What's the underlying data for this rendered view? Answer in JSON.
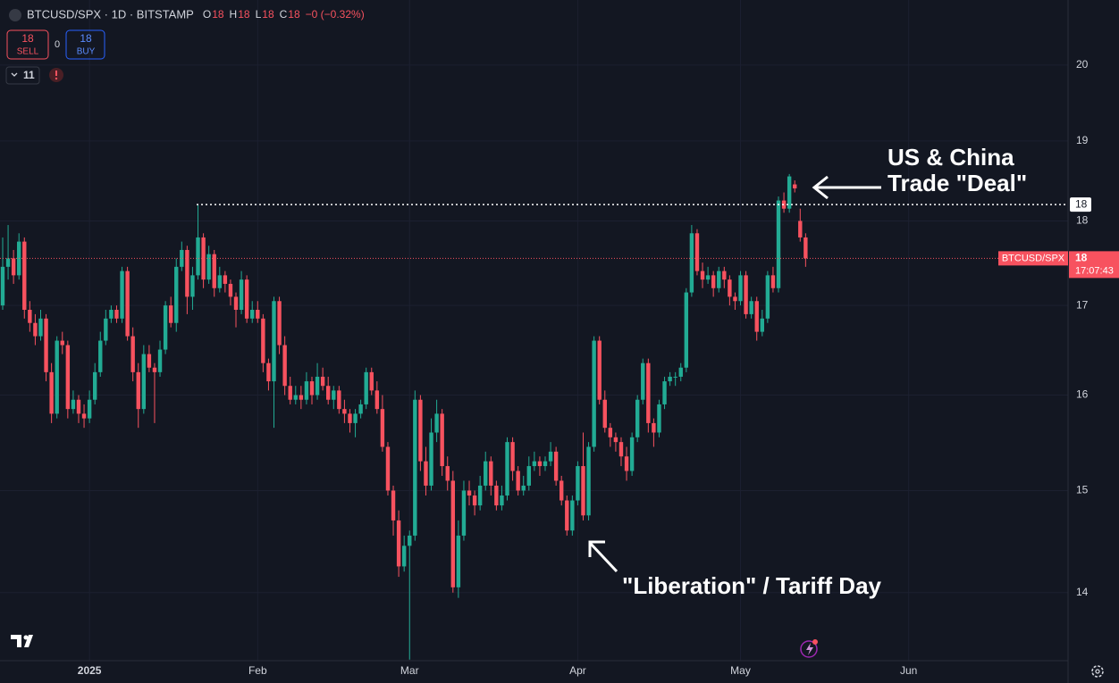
{
  "header": {
    "symbol": "BTCUSD/SPX · 1D · BITSTAMP",
    "ohlc": [
      [
        "O",
        "18"
      ],
      [
        "H",
        "18"
      ],
      [
        "L",
        "18"
      ],
      [
        "C",
        "18"
      ]
    ],
    "change": "−0 (−0.32%)",
    "sell_price": "18",
    "sell": "SELL",
    "spread": "0",
    "buy_price": "18",
    "buy": "BUY",
    "indicators": "11"
  },
  "chart_data": {
    "type": "candlestick",
    "annotations": [
      "US & China",
      "Trade \"Deal\"",
      "\"Liberation\" / Tariff Day"
    ],
    "up_color": "#22ab94",
    "down_color": "#f7525f",
    "log_scale": true,
    "ylim": [
      13.37,
      20.9
    ],
    "yticks": [
      14,
      15,
      16,
      17,
      18,
      19,
      20
    ],
    "high_line": {
      "value": 18.2,
      "label": "18"
    },
    "last_price_label": "18",
    "symbol_tag": "BTCUSD/SPX",
    "countdown": "17:07:43",
    "categories": [
      null,
      null,
      null,
      null,
      null,
      null,
      null,
      null,
      null,
      null,
      null,
      null,
      null,
      null,
      null,
      null,
      "2025",
      null,
      null,
      null,
      null,
      null,
      null,
      null,
      null,
      null,
      null,
      null,
      null,
      null,
      null,
      null,
      null,
      null,
      null,
      null,
      null,
      null,
      null,
      null,
      null,
      null,
      null,
      null,
      null,
      null,
      null,
      "Feb",
      null,
      null,
      null,
      null,
      null,
      null,
      null,
      null,
      null,
      null,
      null,
      null,
      null,
      null,
      null,
      null,
      null,
      null,
      null,
      null,
      null,
      null,
      null,
      null,
      null,
      null,
      null,
      "Mar",
      null,
      null,
      null,
      null,
      null,
      null,
      null,
      null,
      null,
      null,
      null,
      null,
      null,
      null,
      null,
      null,
      null,
      null,
      null,
      null,
      null,
      null,
      null,
      null,
      null,
      null,
      null,
      null,
      null,
      null,
      "Apr",
      null,
      null,
      null,
      null,
      null,
      null,
      null,
      null,
      null,
      null,
      null,
      null,
      null,
      null,
      null,
      null,
      null,
      null,
      null,
      null,
      null,
      null,
      null,
      null,
      null,
      null,
      null,
      null,
      null,
      "May",
      null,
      null,
      null,
      null,
      null,
      null,
      null,
      null,
      null,
      null,
      null,
      null,
      null,
      null,
      null,
      null,
      null,
      null,
      null,
      null,
      null,
      null,
      null,
      null,
      null,
      null,
      null,
      null,
      null,
      null,
      "Jun"
    ],
    "open": [
      17.0,
      17.45,
      17.55,
      17.35,
      17.75,
      16.95,
      16.8,
      16.65,
      16.85,
      16.25,
      15.8,
      16.6,
      16.55,
      15.85,
      15.95,
      15.8,
      15.75,
      15.95,
      16.25,
      16.6,
      16.85,
      16.95,
      16.85,
      17.4,
      16.65,
      16.25,
      15.85,
      16.45,
      16.3,
      16.25,
      16.5,
      17.0,
      16.8,
      17.45,
      17.65,
      17.1,
      17.35,
      17.8,
      17.3,
      17.6,
      17.2,
      17.35,
      17.25,
      17.1,
      16.95,
      17.3,
      16.85,
      16.95,
      16.85,
      16.35,
      16.15,
      17.05,
      16.55,
      16.1,
      15.95,
      16.0,
      15.95,
      16.15,
      16.0,
      16.2,
      16.1,
      15.95,
      16.05,
      15.85,
      15.8,
      15.7,
      15.8,
      15.9,
      16.25,
      16.05,
      15.85,
      15.45,
      15.0,
      14.7,
      14.25,
      14.45,
      14.55,
      15.95,
      15.3,
      15.05,
      15.6,
      15.8,
      15.25,
      15.1,
      14.05,
      14.55,
      15.0,
      14.95,
      14.85,
      15.05,
      15.3,
      15.05,
      14.85,
      14.95,
      15.5,
      15.2,
      15.0,
      15.05,
      15.25,
      15.3,
      15.25,
      15.3,
      15.4,
      15.1,
      14.9,
      14.6,
      14.9,
      15.25,
      14.75,
      15.45,
      16.6,
      15.95,
      15.65,
      15.55,
      15.5,
      15.35,
      15.2,
      15.55,
      15.95,
      16.35,
      15.7,
      15.6,
      15.9,
      16.15,
      16.2,
      16.2,
      16.3,
      17.15,
      17.85,
      17.4,
      17.3,
      17.35,
      17.2,
      17.4,
      17.3,
      17.1,
      17.05,
      17.35,
      16.9,
      17.05,
      16.7,
      16.85,
      17.35,
      17.2,
      18.25,
      18.15,
      18.45,
      18.0,
      17.8,
      null,
      null,
      null,
      null,
      null,
      null,
      null,
      null,
      null,
      null,
      null,
      null,
      null,
      null,
      null,
      null,
      null,
      null,
      null
    ],
    "high": [
      17.8,
      17.95,
      17.65,
      17.85,
      17.8,
      17.05,
      16.9,
      16.95,
      16.9,
      16.35,
      16.65,
      16.7,
      16.6,
      16.05,
      16.0,
      15.9,
      16.05,
      16.35,
      16.7,
      16.95,
      17.0,
      17.0,
      17.45,
      17.45,
      16.75,
      16.35,
      16.55,
      16.55,
      16.35,
      16.6,
      17.05,
      17.1,
      17.55,
      17.75,
      17.7,
      17.45,
      18.2,
      17.85,
      17.7,
      17.65,
      17.45,
      17.4,
      17.3,
      17.15,
      17.4,
      17.35,
      17.05,
      17.05,
      16.9,
      16.4,
      17.1,
      17.1,
      16.65,
      16.2,
      16.1,
      16.1,
      16.25,
      16.2,
      16.35,
      16.3,
      16.2,
      16.1,
      16.1,
      15.95,
      15.85,
      15.85,
      15.95,
      16.3,
      16.3,
      16.15,
      16.0,
      15.5,
      15.05,
      14.8,
      14.55,
      14.6,
      16.05,
      16.0,
      15.45,
      15.75,
      15.95,
      15.85,
      15.35,
      15.2,
      14.7,
      15.1,
      15.1,
      15.0,
      15.15,
      15.4,
      15.35,
      15.1,
      15.05,
      15.55,
      15.55,
      15.25,
      15.15,
      15.35,
      15.4,
      15.35,
      15.35,
      15.5,
      15.45,
      15.15,
      14.95,
      14.95,
      15.3,
      15.6,
      15.5,
      16.65,
      16.65,
      16.05,
      15.7,
      15.6,
      15.55,
      15.45,
      15.6,
      16.0,
      16.4,
      16.4,
      15.75,
      15.95,
      16.2,
      16.25,
      16.25,
      16.35,
      17.2,
      17.95,
      17.9,
      17.5,
      17.45,
      17.4,
      17.45,
      17.45,
      17.35,
      17.15,
      17.4,
      17.4,
      17.1,
      17.1,
      16.95,
      17.4,
      17.45,
      18.3,
      18.35,
      18.58,
      18.5,
      18.15,
      17.85,
      null,
      null,
      null,
      null,
      null,
      null,
      null,
      null,
      null,
      null,
      null,
      null,
      null,
      null,
      null,
      null,
      null,
      null,
      null
    ],
    "low": [
      16.95,
      17.3,
      17.25,
      17.3,
      16.85,
      16.7,
      16.55,
      16.6,
      16.15,
      15.7,
      15.75,
      16.45,
      15.75,
      15.8,
      15.7,
      15.65,
      15.7,
      15.9,
      16.2,
      16.55,
      16.8,
      16.8,
      16.8,
      16.6,
      16.15,
      15.65,
      15.8,
      16.25,
      15.7,
      16.2,
      16.45,
      16.75,
      16.7,
      17.4,
      16.9,
      16.95,
      17.3,
      17.2,
      17.25,
      17.1,
      17.15,
      17.15,
      17.0,
      16.75,
      16.9,
      16.8,
      16.8,
      16.8,
      16.25,
      16.05,
      15.65,
      16.45,
      16.0,
      15.9,
      15.9,
      15.85,
      15.9,
      15.9,
      15.95,
      16.05,
      15.9,
      15.85,
      15.8,
      15.7,
      15.6,
      15.55,
      15.75,
      15.85,
      16.0,
      15.8,
      15.4,
      14.95,
      14.55,
      14.15,
      14.2,
      13.38,
      14.5,
      15.2,
      14.95,
      15.0,
      15.5,
      15.15,
      15.0,
      14.0,
      13.95,
      14.5,
      14.85,
      14.75,
      14.8,
      15.0,
      14.95,
      14.8,
      14.8,
      14.9,
      15.1,
      14.95,
      14.95,
      15.0,
      15.2,
      15.15,
      15.2,
      15.25,
      15.05,
      14.85,
      14.55,
      14.55,
      14.85,
      14.7,
      14.7,
      15.4,
      15.9,
      15.6,
      15.45,
      15.4,
      15.25,
      15.1,
      15.15,
      15.5,
      15.9,
      15.6,
      15.45,
      15.55,
      15.85,
      16.1,
      16.1,
      16.15,
      16.25,
      17.1,
      17.35,
      17.2,
      17.25,
      17.1,
      17.15,
      17.2,
      17.0,
      16.95,
      17.0,
      16.85,
      16.85,
      16.6,
      16.65,
      16.8,
      17.15,
      17.15,
      18.1,
      18.1,
      18.35,
      17.75,
      17.45,
      null,
      null,
      null,
      null,
      null,
      null,
      null,
      null,
      null,
      null,
      null,
      null,
      null,
      null,
      null,
      null,
      null,
      null,
      null
    ],
    "close": [
      17.45,
      17.55,
      17.35,
      17.75,
      16.95,
      16.8,
      16.65,
      16.85,
      16.25,
      15.8,
      16.6,
      16.55,
      15.85,
      15.95,
      15.8,
      15.75,
      15.95,
      16.25,
      16.6,
      16.85,
      16.95,
      16.85,
      17.4,
      16.65,
      16.25,
      15.85,
      16.45,
      16.3,
      16.25,
      16.5,
      17.0,
      16.8,
      17.45,
      17.65,
      17.1,
      17.35,
      17.8,
      17.3,
      17.6,
      17.2,
      17.35,
      17.25,
      17.1,
      16.95,
      17.3,
      16.85,
      16.95,
      16.85,
      16.35,
      16.15,
      17.05,
      16.55,
      16.1,
      15.95,
      16.0,
      15.95,
      16.15,
      16.0,
      16.2,
      16.1,
      15.95,
      16.05,
      15.85,
      15.8,
      15.7,
      15.8,
      15.9,
      16.25,
      16.05,
      15.85,
      15.45,
      15.0,
      14.7,
      14.25,
      14.45,
      14.55,
      15.95,
      15.3,
      15.05,
      15.6,
      15.8,
      15.25,
      15.1,
      14.05,
      14.55,
      15.0,
      14.95,
      14.85,
      15.05,
      15.3,
      15.05,
      14.85,
      14.95,
      15.5,
      15.2,
      15.0,
      15.05,
      15.25,
      15.3,
      15.25,
      15.3,
      15.4,
      15.1,
      14.9,
      14.6,
      14.9,
      15.25,
      14.75,
      15.45,
      16.6,
      15.95,
      15.65,
      15.55,
      15.5,
      15.35,
      15.2,
      15.55,
      15.95,
      16.35,
      15.7,
      15.6,
      15.9,
      16.15,
      16.2,
      16.2,
      16.3,
      17.15,
      17.85,
      17.4,
      17.3,
      17.35,
      17.2,
      17.4,
      17.3,
      17.1,
      17.05,
      17.35,
      16.9,
      17.05,
      16.7,
      16.85,
      17.35,
      17.2,
      18.25,
      18.15,
      18.55,
      18.4,
      17.8,
      17.55,
      null,
      null,
      null,
      null,
      null,
      null,
      null,
      null,
      null,
      null,
      null,
      null,
      null,
      null,
      null,
      null,
      null,
      null,
      null
    ]
  }
}
